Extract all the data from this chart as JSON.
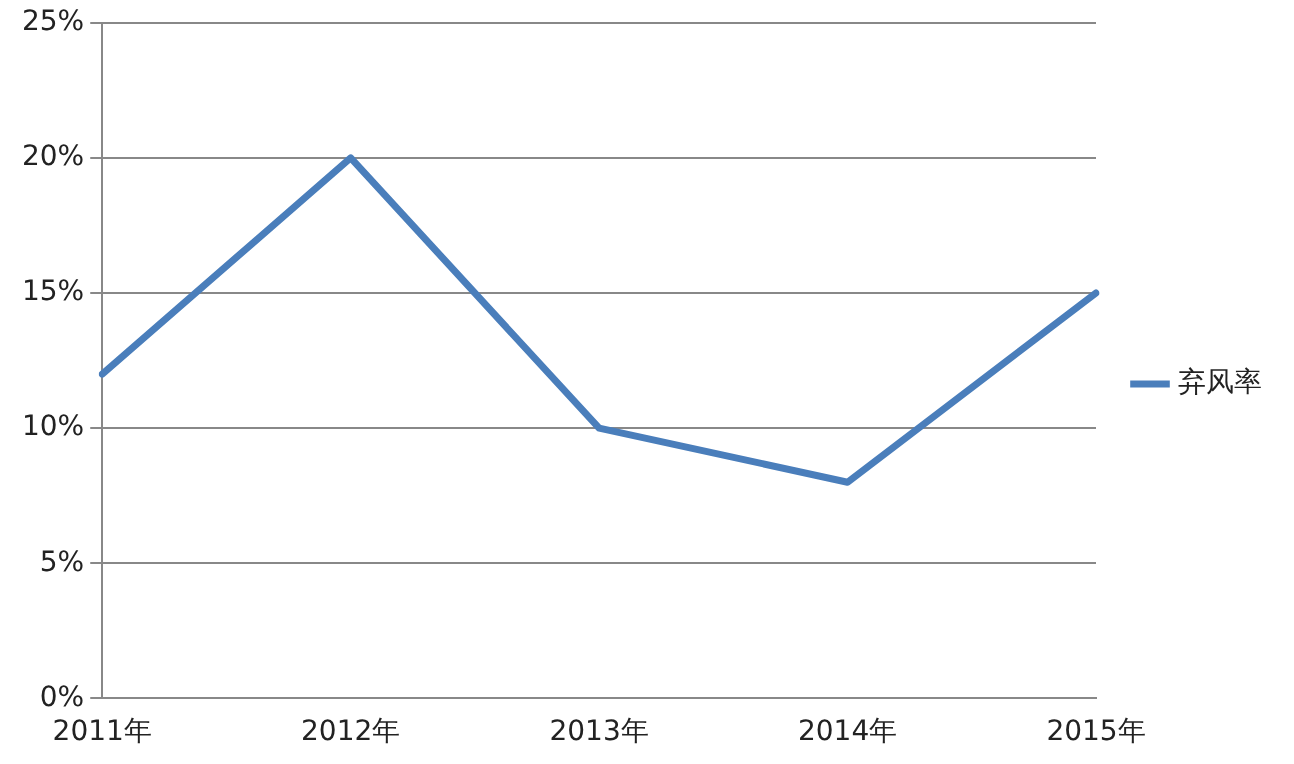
{
  "chart_data": {
    "type": "line",
    "categories": [
      "2011年",
      "2012年",
      "2013年",
      "2014年",
      "2015年"
    ],
    "series": [
      {
        "name": "弃风率",
        "color": "#4a7ebb",
        "values": [
          12,
          20,
          10,
          8,
          15
        ]
      }
    ],
    "ylim": [
      0,
      25
    ],
    "yticks": [
      {
        "value": 0,
        "label": "0%"
      },
      {
        "value": 5,
        "label": "5%"
      },
      {
        "value": 10,
        "label": "10%"
      },
      {
        "value": 15,
        "label": "15%"
      },
      {
        "value": 20,
        "label": "20%"
      },
      {
        "value": 25,
        "label": "25%"
      }
    ],
    "grid": "y",
    "legend": "right",
    "marker": "none",
    "line_style": "solid"
  }
}
